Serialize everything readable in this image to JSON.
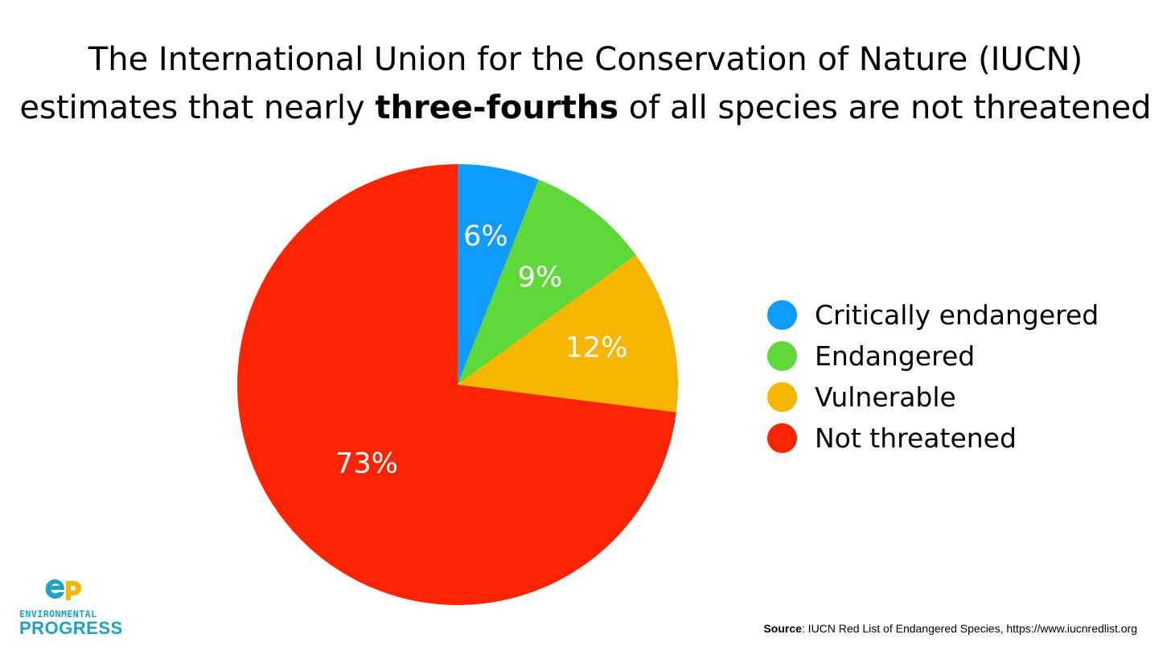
{
  "title": {
    "line1": "The International Union for the Conservation of Nature (IUCN)",
    "line2_prefix": "estimates that nearly ",
    "line2_bold": "three-fourths",
    "line2_suffix": " of all species are not threatened"
  },
  "chart_data": {
    "type": "pie",
    "categories": [
      "Critically endangered",
      "Endangered",
      "Vulnerable",
      "Not threatened"
    ],
    "values": [
      6,
      9,
      12,
      73
    ],
    "labels": [
      "6%",
      "9%",
      "12%",
      "73%"
    ],
    "colors": [
      "#109cfe",
      "#5fd83a",
      "#f7b500",
      "#fc2402"
    ],
    "legend_position": "right"
  },
  "source": {
    "label": "Source",
    "text": ": IUCN Red List of Endangered Species, https://www.iucnredlist.org"
  },
  "logo": {
    "line1": "ENVIRONMENTAL",
    "line2": "PROGRESS",
    "colors": [
      "#1aa3c4",
      "#f7b500"
    ]
  }
}
